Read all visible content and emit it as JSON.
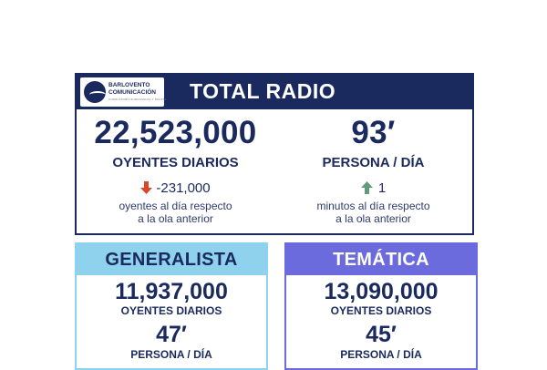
{
  "brand": {
    "logo_line1": "BARLOVENTO",
    "logo_line2": "COMUNICACIÓN",
    "logo_tagline": "CONSULTORÍA AUDIOVISUAL Y DIGITAL"
  },
  "total": {
    "title": "TOTAL RADIO",
    "listeners_value": "22,523,000",
    "listeners_label": "OYENTES DIARIOS",
    "listeners_delta": "-231,000",
    "listeners_delta_note_1": "oyentes al día respecto",
    "listeners_delta_note_2": "a la ola anterior",
    "minutes_value": "93′",
    "minutes_label": "PERSONA / DÍA",
    "minutes_delta": "1",
    "minutes_delta_note_1": "minutos al día respecto",
    "minutes_delta_note_2": "a la ola anterior"
  },
  "generalista": {
    "title": "GENERALISTA",
    "listeners_value": "11,937,000",
    "listeners_label": "OYENTES DIARIOS",
    "minutes_value": "47′",
    "minutes_label": "PERSONA / DÍA"
  },
  "tematica": {
    "title": "TEMÁTICA",
    "listeners_value": "13,090,000",
    "listeners_label": "OYENTES DIARIOS",
    "minutes_value": "45′",
    "minutes_label": "PERSONA / DÍA"
  },
  "colors": {
    "navy": "#1b2a5e",
    "generalista_accent": "#8fd2ee",
    "tematica_accent": "#6b6bde",
    "down_arrow": "#d9472b",
    "up_arrow": "#5f9a7c"
  },
  "icons": {
    "down": "arrow-down-icon",
    "up": "arrow-up-icon",
    "logo": "barlovento-logo-icon"
  }
}
